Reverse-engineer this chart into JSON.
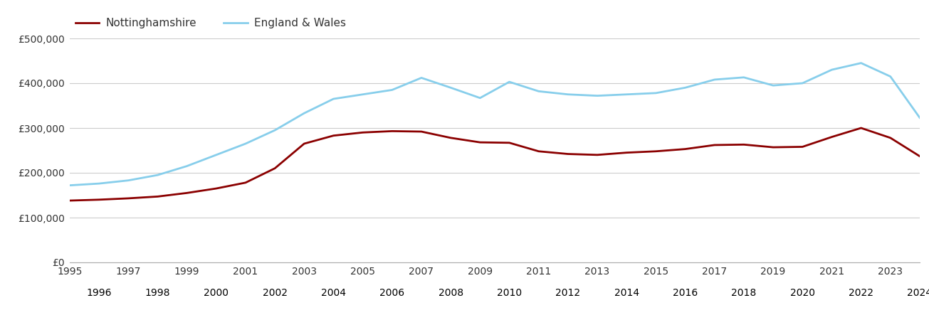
{
  "years": [
    1995,
    1996,
    1997,
    1998,
    1999,
    2000,
    2001,
    2002,
    2003,
    2004,
    2005,
    2006,
    2007,
    2008,
    2009,
    2010,
    2011,
    2012,
    2013,
    2014,
    2015,
    2016,
    2017,
    2018,
    2019,
    2020,
    2021,
    2022,
    2023,
    2024
  ],
  "nottinghamshire": [
    138000,
    140000,
    143000,
    147000,
    155000,
    165000,
    178000,
    210000,
    265000,
    283000,
    290000,
    293000,
    292000,
    278000,
    268000,
    267000,
    248000,
    242000,
    240000,
    245000,
    248000,
    253000,
    262000,
    263000,
    257000,
    258000,
    280000,
    300000,
    278000,
    237000
  ],
  "england_wales": [
    172000,
    176000,
    183000,
    195000,
    215000,
    240000,
    265000,
    295000,
    333000,
    365000,
    375000,
    385000,
    412000,
    390000,
    367000,
    403000,
    382000,
    375000,
    372000,
    375000,
    378000,
    390000,
    408000,
    413000,
    395000,
    400000,
    430000,
    445000,
    415000,
    323000
  ],
  "nottinghamshire_color": "#8B0000",
  "england_wales_color": "#87CEEB",
  "nottinghamshire_label": "Nottinghamshire",
  "england_wales_label": "England & Wales",
  "ylim": [
    0,
    500000
  ],
  "yticks": [
    0,
    100000,
    200000,
    300000,
    400000,
    500000
  ],
  "ytick_labels": [
    "£0",
    "£100,000",
    "£200,000",
    "£300,000",
    "£400,000",
    "£500,000"
  ],
  "background_color": "#ffffff",
  "grid_color": "#cccccc",
  "line_width": 2.0,
  "legend_fontsize": 11,
  "tick_fontsize": 10,
  "text_color": "#333333"
}
